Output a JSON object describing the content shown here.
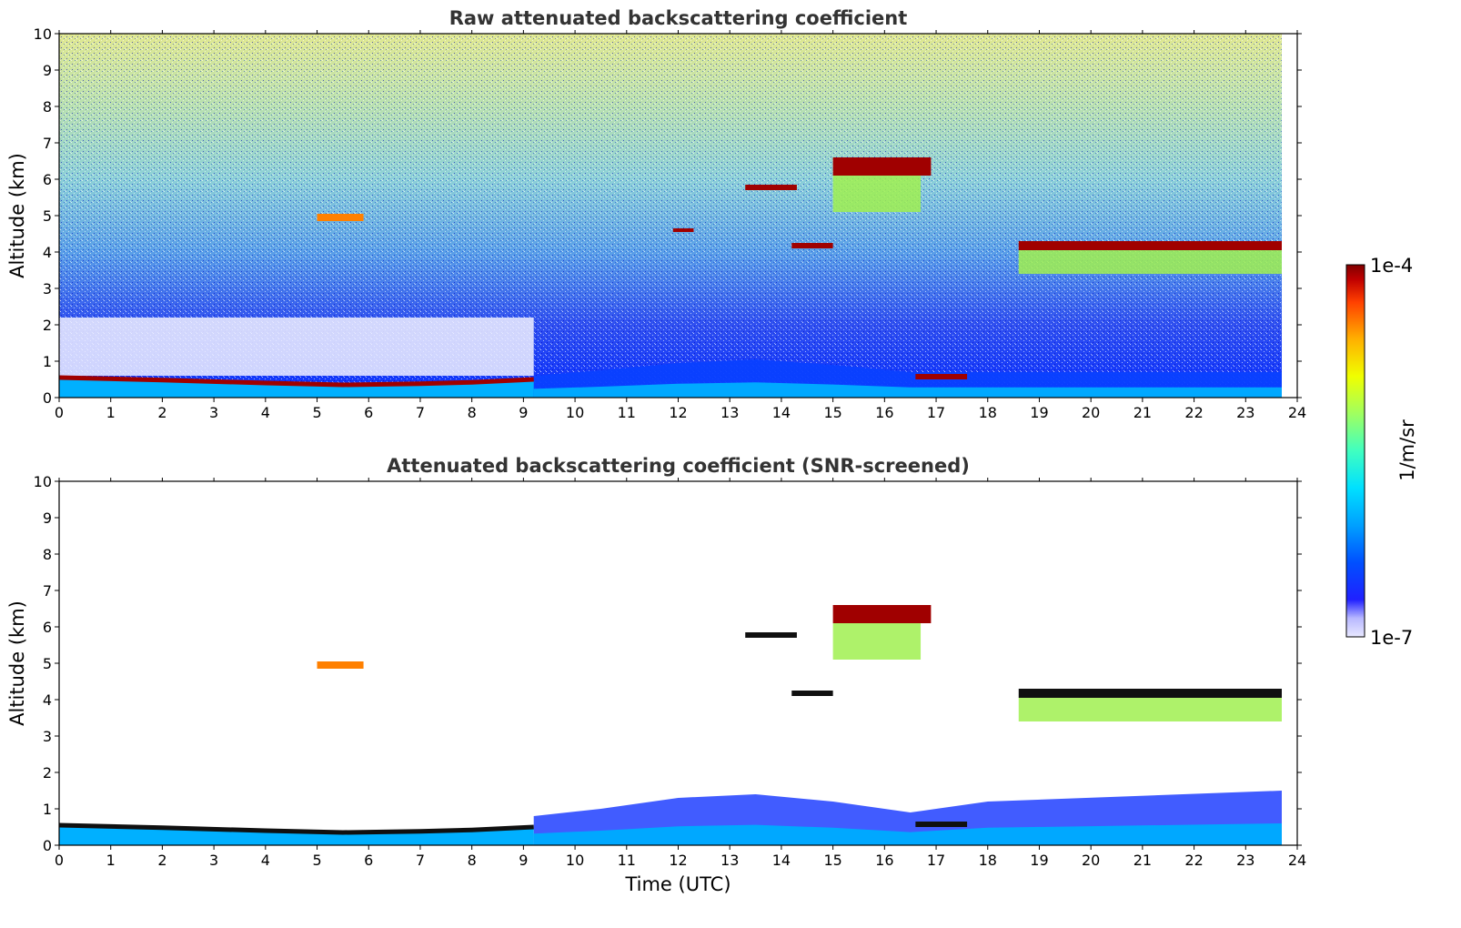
{
  "chart_data": [
    {
      "type": "heatmap",
      "title": "Raw attenuated backscattering coefficient",
      "ylabel": "Altitude (km)",
      "xlabel": "",
      "xlim": [
        0,
        24
      ],
      "ylim": [
        0,
        10
      ],
      "xticks": [
        "0",
        "1",
        "2",
        "3",
        "4",
        "5",
        "6",
        "7",
        "8",
        "9",
        "10",
        "11",
        "12",
        "13",
        "14",
        "15",
        "16",
        "17",
        "18",
        "19",
        "20",
        "21",
        "22",
        "23",
        "24"
      ],
      "yticks": [
        "0",
        "1",
        "2",
        "3",
        "4",
        "5",
        "6",
        "7",
        "8",
        "9",
        "10"
      ],
      "data_end_time": 23.7,
      "features": [
        {
          "kind": "boundary_layer_top",
          "points": [
            [
              0,
              0.55
            ],
            [
              2,
              0.48
            ],
            [
              4,
              0.4
            ],
            [
              5.5,
              0.35
            ],
            [
              7,
              0.38
            ],
            [
              8,
              0.42
            ],
            [
              9.2,
              0.5
            ]
          ],
          "level": "very high"
        },
        {
          "kind": "aerosol_layer",
          "points": [
            [
              9.2,
              0.6
            ],
            [
              10.5,
              0.75
            ],
            [
              12,
              0.95
            ],
            [
              13.5,
              1.05
            ],
            [
              15,
              0.9
            ],
            [
              16.5,
              0.7
            ],
            [
              18,
              0.7
            ],
            [
              23.7,
              0.7
            ]
          ],
          "level": "low"
        },
        {
          "kind": "cloud",
          "x": [
            5.0,
            5.9
          ],
          "y": [
            4.85,
            5.05
          ],
          "level": "high"
        },
        {
          "kind": "cloud",
          "x": [
            13.3,
            14.3
          ],
          "y": [
            5.7,
            5.85
          ],
          "level": "very high"
        },
        {
          "kind": "cloud",
          "x": [
            11.9,
            12.3
          ],
          "y": [
            4.55,
            4.65
          ],
          "level": "very high"
        },
        {
          "kind": "cloud",
          "x": [
            14.2,
            15.0
          ],
          "y": [
            4.1,
            4.25
          ],
          "level": "very high"
        },
        {
          "kind": "cloud",
          "x": [
            15.0,
            16.9
          ],
          "y": [
            6.1,
            6.6
          ],
          "level": "very high"
        },
        {
          "kind": "cloud",
          "x": [
            15.0,
            16.7
          ],
          "y": [
            5.1,
            6.1
          ],
          "level": "medium"
        },
        {
          "kind": "cloud",
          "x": [
            18.6,
            23.7
          ],
          "y": [
            4.05,
            4.3
          ],
          "level": "very high"
        },
        {
          "kind": "cloud",
          "x": [
            18.6,
            23.7
          ],
          "y": [
            3.4,
            4.05
          ],
          "level": "medium"
        },
        {
          "kind": "cloud",
          "x": [
            16.6,
            17.6
          ],
          "y": [
            0.5,
            0.65
          ],
          "level": "very high"
        }
      ]
    },
    {
      "type": "heatmap",
      "title": "Attenuated backscattering coefficient (SNR-screened)",
      "ylabel": "Altitude (km)",
      "xlabel": "Time (UTC)",
      "xlim": [
        0,
        24
      ],
      "ylim": [
        0,
        10
      ],
      "xticks": [
        "0",
        "1",
        "2",
        "3",
        "4",
        "5",
        "6",
        "7",
        "8",
        "9",
        "10",
        "11",
        "12",
        "13",
        "14",
        "15",
        "16",
        "17",
        "18",
        "19",
        "20",
        "21",
        "22",
        "23",
        "24"
      ],
      "yticks": [
        "0",
        "1",
        "2",
        "3",
        "4",
        "5",
        "6",
        "7",
        "8",
        "9",
        "10"
      ],
      "data_end_time": 23.7,
      "features": [
        {
          "kind": "boundary_layer_top",
          "points": [
            [
              0,
              0.55
            ],
            [
              2,
              0.48
            ],
            [
              4,
              0.4
            ],
            [
              5.5,
              0.35
            ],
            [
              7,
              0.38
            ],
            [
              8,
              0.42
            ],
            [
              9.2,
              0.5
            ]
          ],
          "level": "very high"
        },
        {
          "kind": "aerosol_layer",
          "points": [
            [
              9.2,
              0.8
            ],
            [
              10.5,
              1.0
            ],
            [
              12,
              1.3
            ],
            [
              13.5,
              1.4
            ],
            [
              15,
              1.2
            ],
            [
              16.5,
              0.9
            ],
            [
              18,
              1.2
            ],
            [
              23.7,
              1.5
            ]
          ],
          "level": "low"
        },
        {
          "kind": "cloud",
          "x": [
            5.0,
            5.9
          ],
          "y": [
            4.85,
            5.05
          ],
          "level": "high"
        },
        {
          "kind": "cloud",
          "x": [
            13.3,
            14.3
          ],
          "y": [
            5.7,
            5.85
          ],
          "level": "very high"
        },
        {
          "kind": "cloud",
          "x": [
            14.2,
            15.0
          ],
          "y": [
            4.1,
            4.25
          ],
          "level": "very high"
        },
        {
          "kind": "cloud",
          "x": [
            15.0,
            16.9
          ],
          "y": [
            6.1,
            6.6
          ],
          "level": "very high"
        },
        {
          "kind": "cloud",
          "x": [
            15.0,
            16.7
          ],
          "y": [
            5.1,
            6.1
          ],
          "level": "medium"
        },
        {
          "kind": "cloud",
          "x": [
            18.6,
            23.7
          ],
          "y": [
            4.05,
            4.3
          ],
          "level": "very high"
        },
        {
          "kind": "cloud",
          "x": [
            18.6,
            23.7
          ],
          "y": [
            3.4,
            4.05
          ],
          "level": "medium"
        },
        {
          "kind": "cloud",
          "x": [
            16.6,
            17.6
          ],
          "y": [
            0.5,
            0.65
          ],
          "level": "very high"
        }
      ]
    }
  ],
  "colorbar": {
    "label": "1/m/sr",
    "min_label": "1e-7",
    "max_label": "1e-4",
    "scale": "log",
    "colors": [
      "#e8e8ff",
      "#b8b8ff",
      "#2020ff",
      "#0050ff",
      "#00a0ff",
      "#00e0ff",
      "#40ffc0",
      "#a0ff60",
      "#f0ff00",
      "#ffb000",
      "#ff4000",
      "#c00000",
      "#800000"
    ]
  },
  "background_colors": {
    "high_noise": "#e8f0c8",
    "low_noise": "#1020e8"
  }
}
